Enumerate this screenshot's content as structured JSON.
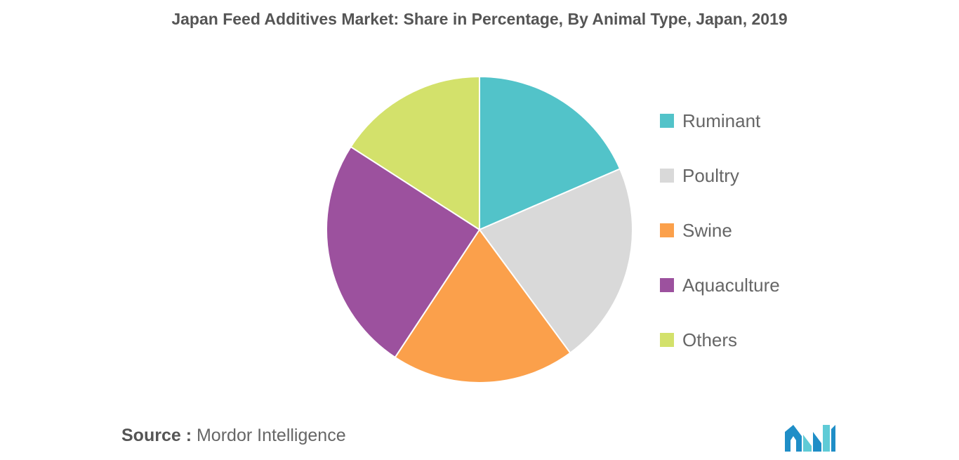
{
  "chart_data": {
    "type": "pie",
    "title": "Japan Feed Additives Market: Share in Percentage, By Animal Type, Japan, 2019",
    "categories": [
      "Ruminant",
      "Poultry",
      "Swine",
      "Aquaculture",
      "Others"
    ],
    "values": [
      18.5,
      21.4,
      19.4,
      24.8,
      15.9
    ],
    "colors": [
      "#52c3c9",
      "#d9d9d9",
      "#fba04b",
      "#9c519e",
      "#d3e16b"
    ],
    "legend_position": "right",
    "start_angle_deg": 0,
    "direction": "clockwise"
  },
  "source": {
    "prefix": "Source :",
    "text": "Mordor Intelligence"
  },
  "logo": {
    "icon": "mordor-intelligence-logo-icon",
    "colors": [
      "#1f8ec7",
      "#5fcbd6"
    ]
  }
}
